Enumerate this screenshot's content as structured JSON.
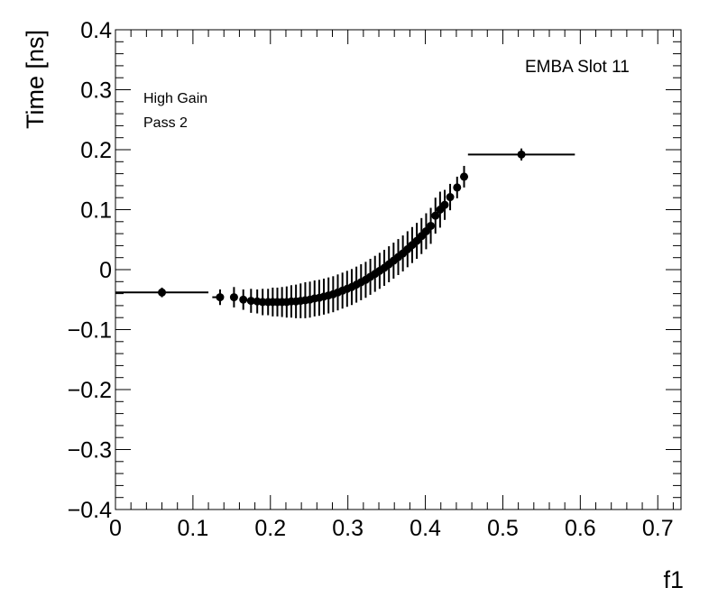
{
  "chart_data": {
    "type": "scatter",
    "xlabel": "f1",
    "ylabel": "Time [ns]",
    "xlim": [
      0,
      0.73
    ],
    "ylim": [
      -0.4,
      0.4
    ],
    "x_ticks": [
      "0",
      "0.1",
      "0.2",
      "0.3",
      "0.4",
      "0.5",
      "0.6",
      "0.7"
    ],
    "y_ticks": [
      "−0.4",
      "−0.3",
      "−0.2",
      "−0.1",
      "0",
      "0.1",
      "0.2",
      "0.3",
      "0.4"
    ],
    "annotations": {
      "top_right": "EMBA Slot 11",
      "line1": "High Gain",
      "line2": "Pass 2"
    },
    "series": [
      {
        "marker": "circle",
        "color": "#000000",
        "points": [
          {
            "x": 0.06,
            "y": -0.038,
            "xerr_lo": 0.06,
            "xerr_hi": 0.06,
            "yerr": 0.008
          },
          {
            "x": 0.135,
            "y": -0.046,
            "xerr_lo": 0.01,
            "xerr_hi": 0.004,
            "yerr": 0.013
          },
          {
            "x": 0.153,
            "y": -0.046,
            "xerr_lo": 0.002,
            "xerr_hi": 0.002,
            "yerr": 0.017
          },
          {
            "x": 0.165,
            "y": -0.05,
            "xerr_lo": 0.0015,
            "xerr_hi": 0.0015,
            "yerr": 0.017
          },
          {
            "x": 0.175,
            "y": -0.052,
            "xerr_lo": 0.0015,
            "xerr_hi": 0.0015,
            "yerr": 0.02
          },
          {
            "x": 0.183,
            "y": -0.053,
            "xerr_lo": 0.001,
            "xerr_hi": 0.001,
            "yerr": 0.02
          },
          {
            "x": 0.19,
            "y": -0.054,
            "xerr_lo": 0.001,
            "xerr_hi": 0.001,
            "yerr": 0.022
          },
          {
            "x": 0.197,
            "y": -0.054,
            "xerr_lo": 0.001,
            "xerr_hi": 0.001,
            "yerr": 0.022
          },
          {
            "x": 0.203,
            "y": -0.054,
            "xerr_lo": 0.001,
            "xerr_hi": 0.001,
            "yerr": 0.024
          },
          {
            "x": 0.209,
            "y": -0.054,
            "xerr_lo": 0.001,
            "xerr_hi": 0.001,
            "yerr": 0.024
          },
          {
            "x": 0.215,
            "y": -0.054,
            "xerr_lo": 0.001,
            "xerr_hi": 0.001,
            "yerr": 0.025
          },
          {
            "x": 0.221,
            "y": -0.054,
            "xerr_lo": 0.001,
            "xerr_hi": 0.001,
            "yerr": 0.026
          },
          {
            "x": 0.227,
            "y": -0.053,
            "xerr_lo": 0.001,
            "xerr_hi": 0.001,
            "yerr": 0.027
          },
          {
            "x": 0.233,
            "y": -0.053,
            "xerr_lo": 0.001,
            "xerr_hi": 0.001,
            "yerr": 0.028
          },
          {
            "x": 0.239,
            "y": -0.052,
            "xerr_lo": 0.001,
            "xerr_hi": 0.001,
            "yerr": 0.029
          },
          {
            "x": 0.245,
            "y": -0.051,
            "xerr_lo": 0.001,
            "xerr_hi": 0.001,
            "yerr": 0.03
          },
          {
            "x": 0.251,
            "y": -0.05,
            "xerr_lo": 0.001,
            "xerr_hi": 0.001,
            "yerr": 0.03
          },
          {
            "x": 0.257,
            "y": -0.048,
            "xerr_lo": 0.001,
            "xerr_hi": 0.001,
            "yerr": 0.03
          },
          {
            "x": 0.263,
            "y": -0.047,
            "xerr_lo": 0.001,
            "xerr_hi": 0.001,
            "yerr": 0.03
          },
          {
            "x": 0.269,
            "y": -0.045,
            "xerr_lo": 0.001,
            "xerr_hi": 0.001,
            "yerr": 0.03
          },
          {
            "x": 0.275,
            "y": -0.043,
            "xerr_lo": 0.001,
            "xerr_hi": 0.001,
            "yerr": 0.03
          },
          {
            "x": 0.281,
            "y": -0.041,
            "xerr_lo": 0.001,
            "xerr_hi": 0.001,
            "yerr": 0.03
          },
          {
            "x": 0.287,
            "y": -0.038,
            "xerr_lo": 0.001,
            "xerr_hi": 0.001,
            "yerr": 0.03
          },
          {
            "x": 0.293,
            "y": -0.035,
            "xerr_lo": 0.001,
            "xerr_hi": 0.001,
            "yerr": 0.03
          },
          {
            "x": 0.299,
            "y": -0.032,
            "xerr_lo": 0.001,
            "xerr_hi": 0.001,
            "yerr": 0.03
          },
          {
            "x": 0.305,
            "y": -0.029,
            "xerr_lo": 0.001,
            "xerr_hi": 0.001,
            "yerr": 0.03
          },
          {
            "x": 0.311,
            "y": -0.025,
            "xerr_lo": 0.001,
            "xerr_hi": 0.001,
            "yerr": 0.03
          },
          {
            "x": 0.317,
            "y": -0.021,
            "xerr_lo": 0.001,
            "xerr_hi": 0.001,
            "yerr": 0.03
          },
          {
            "x": 0.323,
            "y": -0.017,
            "xerr_lo": 0.001,
            "xerr_hi": 0.001,
            "yerr": 0.03
          },
          {
            "x": 0.329,
            "y": -0.012,
            "xerr_lo": 0.001,
            "xerr_hi": 0.001,
            "yerr": 0.03
          },
          {
            "x": 0.335,
            "y": -0.007,
            "xerr_lo": 0.001,
            "xerr_hi": 0.001,
            "yerr": 0.03
          },
          {
            "x": 0.341,
            "y": -0.002,
            "xerr_lo": 0.001,
            "xerr_hi": 0.001,
            "yerr": 0.03
          },
          {
            "x": 0.347,
            "y": 0.003,
            "xerr_lo": 0.001,
            "xerr_hi": 0.001,
            "yerr": 0.03
          },
          {
            "x": 0.353,
            "y": 0.009,
            "xerr_lo": 0.001,
            "xerr_hi": 0.001,
            "yerr": 0.03
          },
          {
            "x": 0.359,
            "y": 0.015,
            "xerr_lo": 0.001,
            "xerr_hi": 0.001,
            "yerr": 0.03
          },
          {
            "x": 0.365,
            "y": 0.021,
            "xerr_lo": 0.001,
            "xerr_hi": 0.001,
            "yerr": 0.03
          },
          {
            "x": 0.371,
            "y": 0.027,
            "xerr_lo": 0.001,
            "xerr_hi": 0.001,
            "yerr": 0.03
          },
          {
            "x": 0.377,
            "y": 0.034,
            "xerr_lo": 0.001,
            "xerr_hi": 0.001,
            "yerr": 0.03
          },
          {
            "x": 0.383,
            "y": 0.041,
            "xerr_lo": 0.001,
            "xerr_hi": 0.001,
            "yerr": 0.03
          },
          {
            "x": 0.389,
            "y": 0.048,
            "xerr_lo": 0.001,
            "xerr_hi": 0.001,
            "yerr": 0.03
          },
          {
            "x": 0.395,
            "y": 0.056,
            "xerr_lo": 0.001,
            "xerr_hi": 0.001,
            "yerr": 0.03
          },
          {
            "x": 0.401,
            "y": 0.064,
            "xerr_lo": 0.001,
            "xerr_hi": 0.001,
            "yerr": 0.03
          },
          {
            "x": 0.407,
            "y": 0.073,
            "xerr_lo": 0.001,
            "xerr_hi": 0.001,
            "yerr": 0.03
          },
          {
            "x": 0.413,
            "y": 0.09,
            "xerr_lo": 0.001,
            "xerr_hi": 0.001,
            "yerr": 0.03
          },
          {
            "x": 0.419,
            "y": 0.1,
            "xerr_lo": 0.001,
            "xerr_hi": 0.001,
            "yerr": 0.03
          },
          {
            "x": 0.425,
            "y": 0.108,
            "xerr_lo": 0.001,
            "xerr_hi": 0.001,
            "yerr": 0.025
          },
          {
            "x": 0.432,
            "y": 0.121,
            "xerr_lo": 0.002,
            "xerr_hi": 0.002,
            "yerr": 0.022
          },
          {
            "x": 0.441,
            "y": 0.137,
            "xerr_lo": 0.003,
            "xerr_hi": 0.003,
            "yerr": 0.018
          },
          {
            "x": 0.45,
            "y": 0.155,
            "xerr_lo": 0.005,
            "xerr_hi": 0.005,
            "yerr": 0.018
          },
          {
            "x": 0.524,
            "y": 0.192,
            "xerr_lo": 0.069,
            "xerr_hi": 0.069,
            "yerr": 0.01
          }
        ]
      }
    ]
  }
}
